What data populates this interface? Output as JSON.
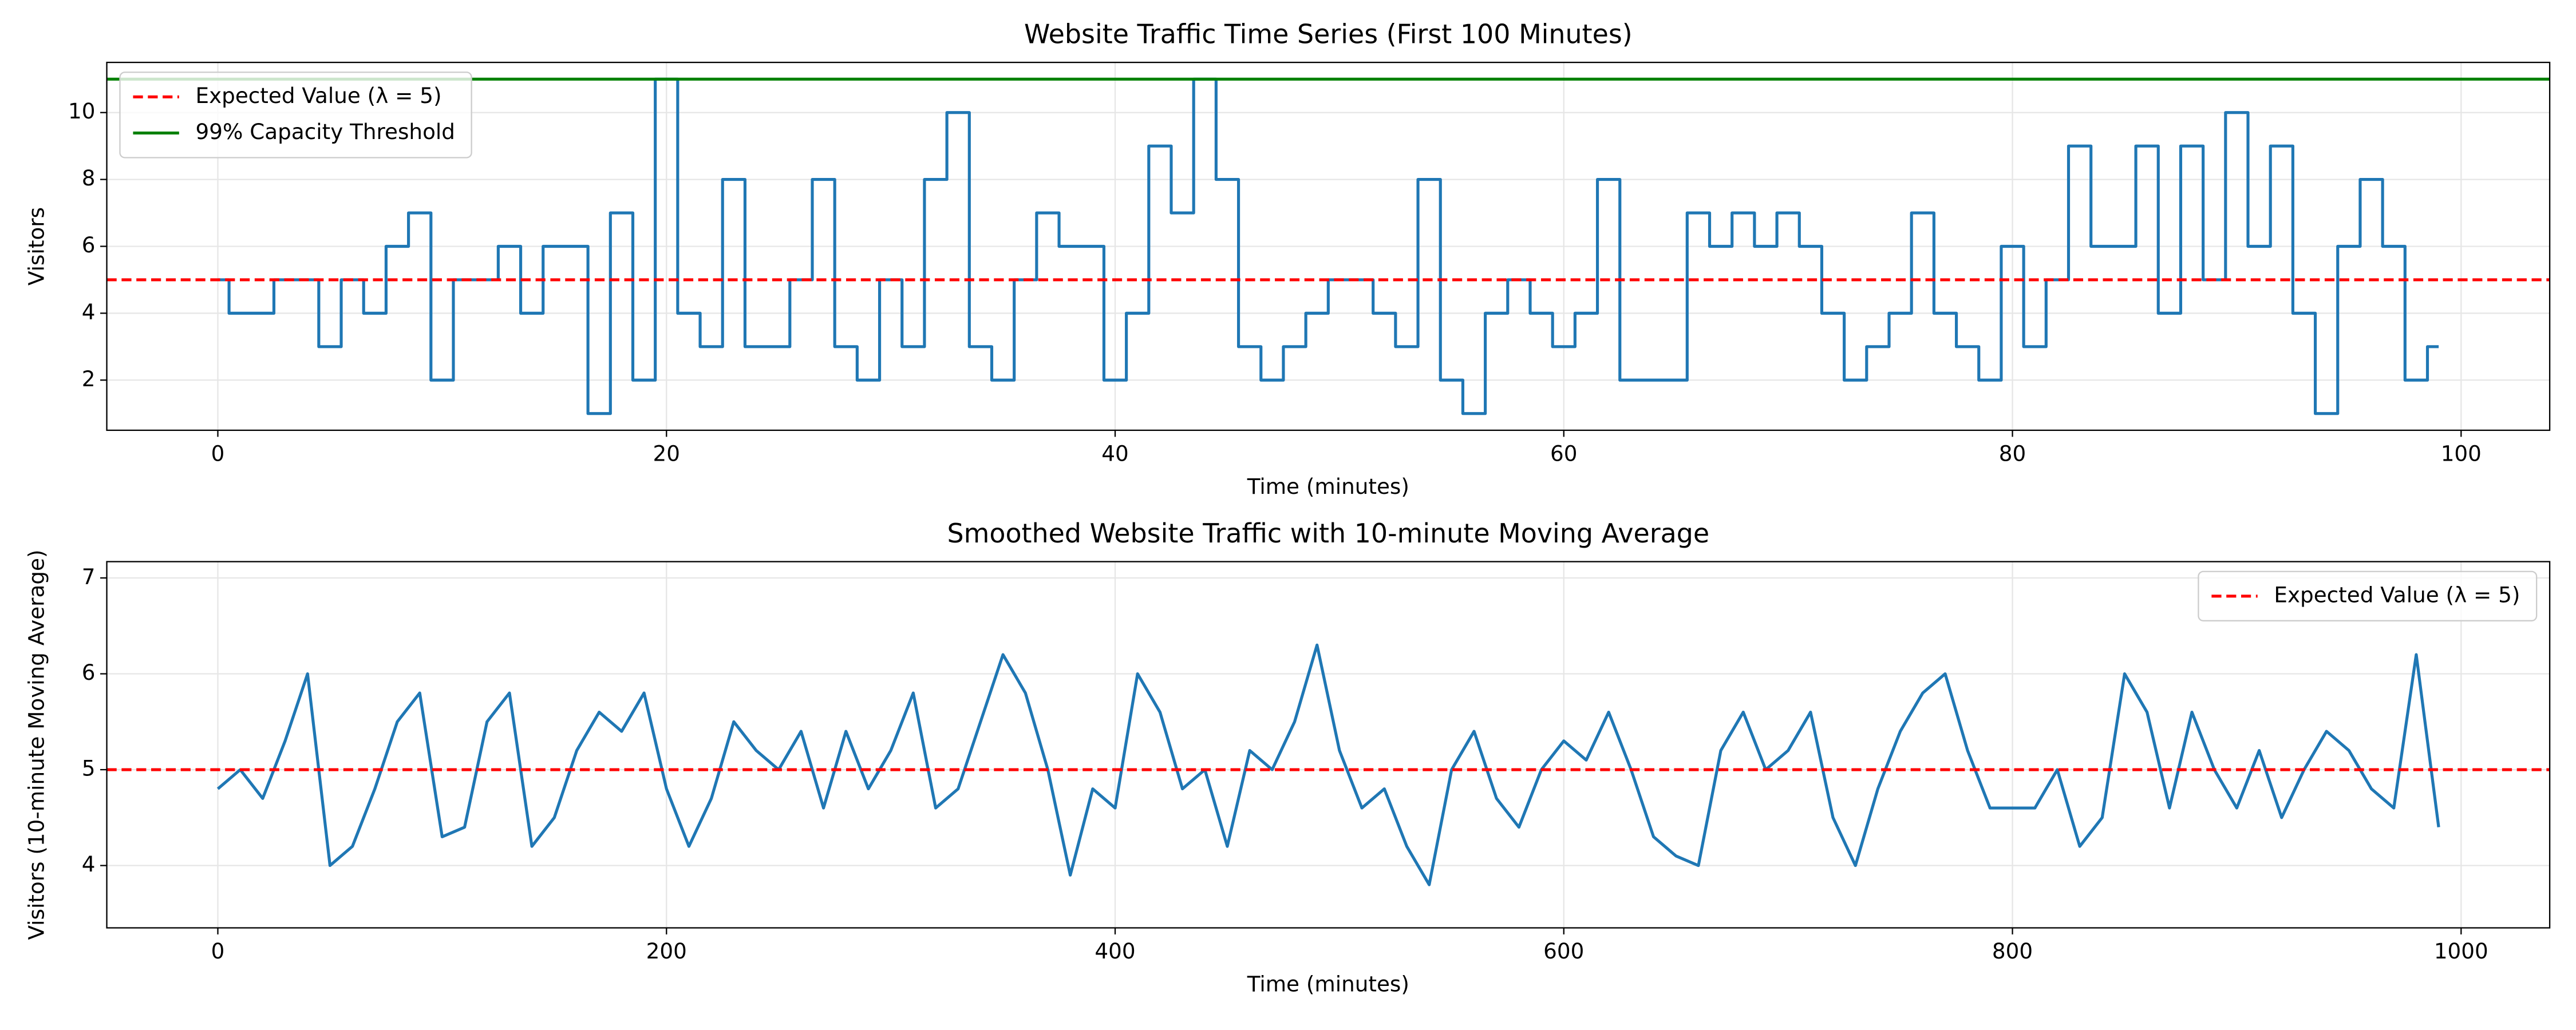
{
  "chart_data": [
    {
      "type": "step",
      "title": "Website Traffic Time Series (First 100 Minutes)",
      "xlabel": "Time (minutes)",
      "ylabel": "Visitors",
      "x": [
        0,
        1,
        2,
        3,
        4,
        5,
        6,
        7,
        8,
        9,
        10,
        11,
        12,
        13,
        14,
        15,
        16,
        17,
        18,
        19,
        20,
        21,
        22,
        23,
        24,
        25,
        26,
        27,
        28,
        29,
        30,
        31,
        32,
        33,
        34,
        35,
        36,
        37,
        38,
        39,
        40,
        41,
        42,
        43,
        44,
        45,
        46,
        47,
        48,
        49,
        50,
        51,
        52,
        53,
        54,
        55,
        56,
        57,
        58,
        59,
        60,
        61,
        62,
        63,
        64,
        65,
        66,
        67,
        68,
        69,
        70,
        71,
        72,
        73,
        74,
        75,
        76,
        77,
        78,
        79,
        80,
        81,
        82,
        83,
        84,
        85,
        86,
        87,
        88,
        89,
        90,
        91,
        92,
        93,
        94,
        95,
        96,
        97,
        98,
        99
      ],
      "values": [
        5,
        4,
        4,
        5,
        5,
        3,
        5,
        4,
        6,
        7,
        2,
        5,
        5,
        6,
        4,
        6,
        6,
        1,
        7,
        2,
        11,
        4,
        3,
        8,
        3,
        3,
        5,
        8,
        3,
        2,
        5,
        3,
        8,
        10,
        3,
        2,
        5,
        7,
        6,
        6,
        2,
        4,
        9,
        7,
        11,
        8,
        3,
        2,
        3,
        4,
        5,
        5,
        4,
        3,
        8,
        2,
        1,
        4,
        5,
        4,
        3,
        4,
        8,
        2,
        2,
        2,
        7,
        6,
        7,
        6,
        7,
        6,
        4,
        2,
        3,
        4,
        7,
        4,
        3,
        2,
        6,
        3,
        5,
        9,
        6,
        6,
        9,
        4,
        9,
        5,
        10,
        6,
        9,
        4,
        1,
        6,
        8,
        6,
        2,
        3
      ],
      "color": "#1f77b4",
      "reference_lines": [
        {
          "y": 5,
          "label": "Expected Value (λ = 5)",
          "color": "#ff0000",
          "style": "dashed"
        },
        {
          "y": 11,
          "label": "99% Capacity Threshold",
          "color": "#008000",
          "style": "solid"
        }
      ],
      "xlim": [
        -4.95,
        103.95
      ],
      "ylim": [
        0.5,
        11.5
      ],
      "xticks": [
        0,
        20,
        40,
        60,
        80,
        100
      ],
      "yticks": [
        2,
        4,
        6,
        8,
        10
      ],
      "grid": true,
      "legend": "upper left"
    },
    {
      "type": "line",
      "title": "Smoothed Website Traffic with 10-minute Moving Average",
      "xlabel": "Time (minutes)",
      "ylabel": "Visitors (10-minute Moving Average)",
      "x": [
        0,
        10,
        20,
        30,
        40,
        50,
        60,
        70,
        80,
        90,
        100,
        110,
        120,
        130,
        140,
        150,
        160,
        170,
        180,
        190,
        200,
        210,
        220,
        230,
        240,
        250,
        260,
        270,
        280,
        290,
        300,
        310,
        320,
        330,
        340,
        350,
        360,
        370,
        380,
        390,
        400,
        410,
        420,
        430,
        440,
        450,
        460,
        470,
        480,
        490,
        500,
        510,
        520,
        530,
        540,
        550,
        560,
        570,
        580,
        590,
        600,
        610,
        620,
        630,
        640,
        650,
        660,
        670,
        680,
        690,
        700,
        710,
        720,
        730,
        740,
        750,
        760,
        770,
        780,
        790,
        800,
        810,
        820,
        830,
        840,
        850,
        860,
        870,
        880,
        890,
        900,
        910,
        920,
        930,
        940,
        950,
        960,
        970,
        980,
        990
      ],
      "values": [
        4.8,
        5.0,
        4.7,
        5.3,
        6.0,
        4.0,
        4.2,
        4.8,
        5.5,
        5.8,
        4.3,
        4.4,
        5.5,
        5.8,
        4.2,
        4.5,
        5.2,
        5.6,
        5.4,
        5.8,
        4.8,
        4.2,
        4.7,
        5.5,
        5.2,
        5.0,
        5.4,
        4.6,
        5.4,
        4.8,
        5.2,
        5.8,
        4.6,
        4.8,
        5.5,
        6.2,
        5.8,
        5.0,
        3.9,
        4.8,
        4.6,
        6.0,
        5.6,
        4.8,
        5.0,
        4.2,
        5.2,
        5.0,
        5.5,
        6.3,
        5.2,
        4.6,
        4.8,
        4.2,
        3.8,
        5.0,
        5.4,
        4.7,
        4.4,
        5.0,
        5.3,
        5.1,
        5.6,
        5.0,
        4.3,
        4.1,
        4.0,
        5.2,
        5.6,
        5.0,
        5.2,
        5.6,
        4.5,
        4.0,
        4.8,
        5.4,
        5.8,
        6.0,
        5.2,
        4.6,
        4.6,
        4.6,
        5.0,
        4.2,
        4.5,
        6.0,
        5.6,
        4.6,
        5.6,
        5.0,
        4.6,
        5.2,
        4.5,
        5.0,
        5.4,
        5.2,
        4.8,
        4.6,
        6.2,
        4.4
      ],
      "color": "#1f77b4",
      "reference_lines": [
        {
          "y": 5,
          "label": "Expected Value (λ = 5)",
          "color": "#ff0000",
          "style": "dashed"
        }
      ],
      "xlim": [
        -49.5,
        1039.5
      ],
      "ylim": [
        3.35,
        7.17
      ],
      "xticks": [
        0,
        200,
        400,
        600,
        800,
        1000
      ],
      "yticks": [
        4,
        5,
        6,
        7
      ],
      "grid": true,
      "legend": "upper right"
    }
  ]
}
